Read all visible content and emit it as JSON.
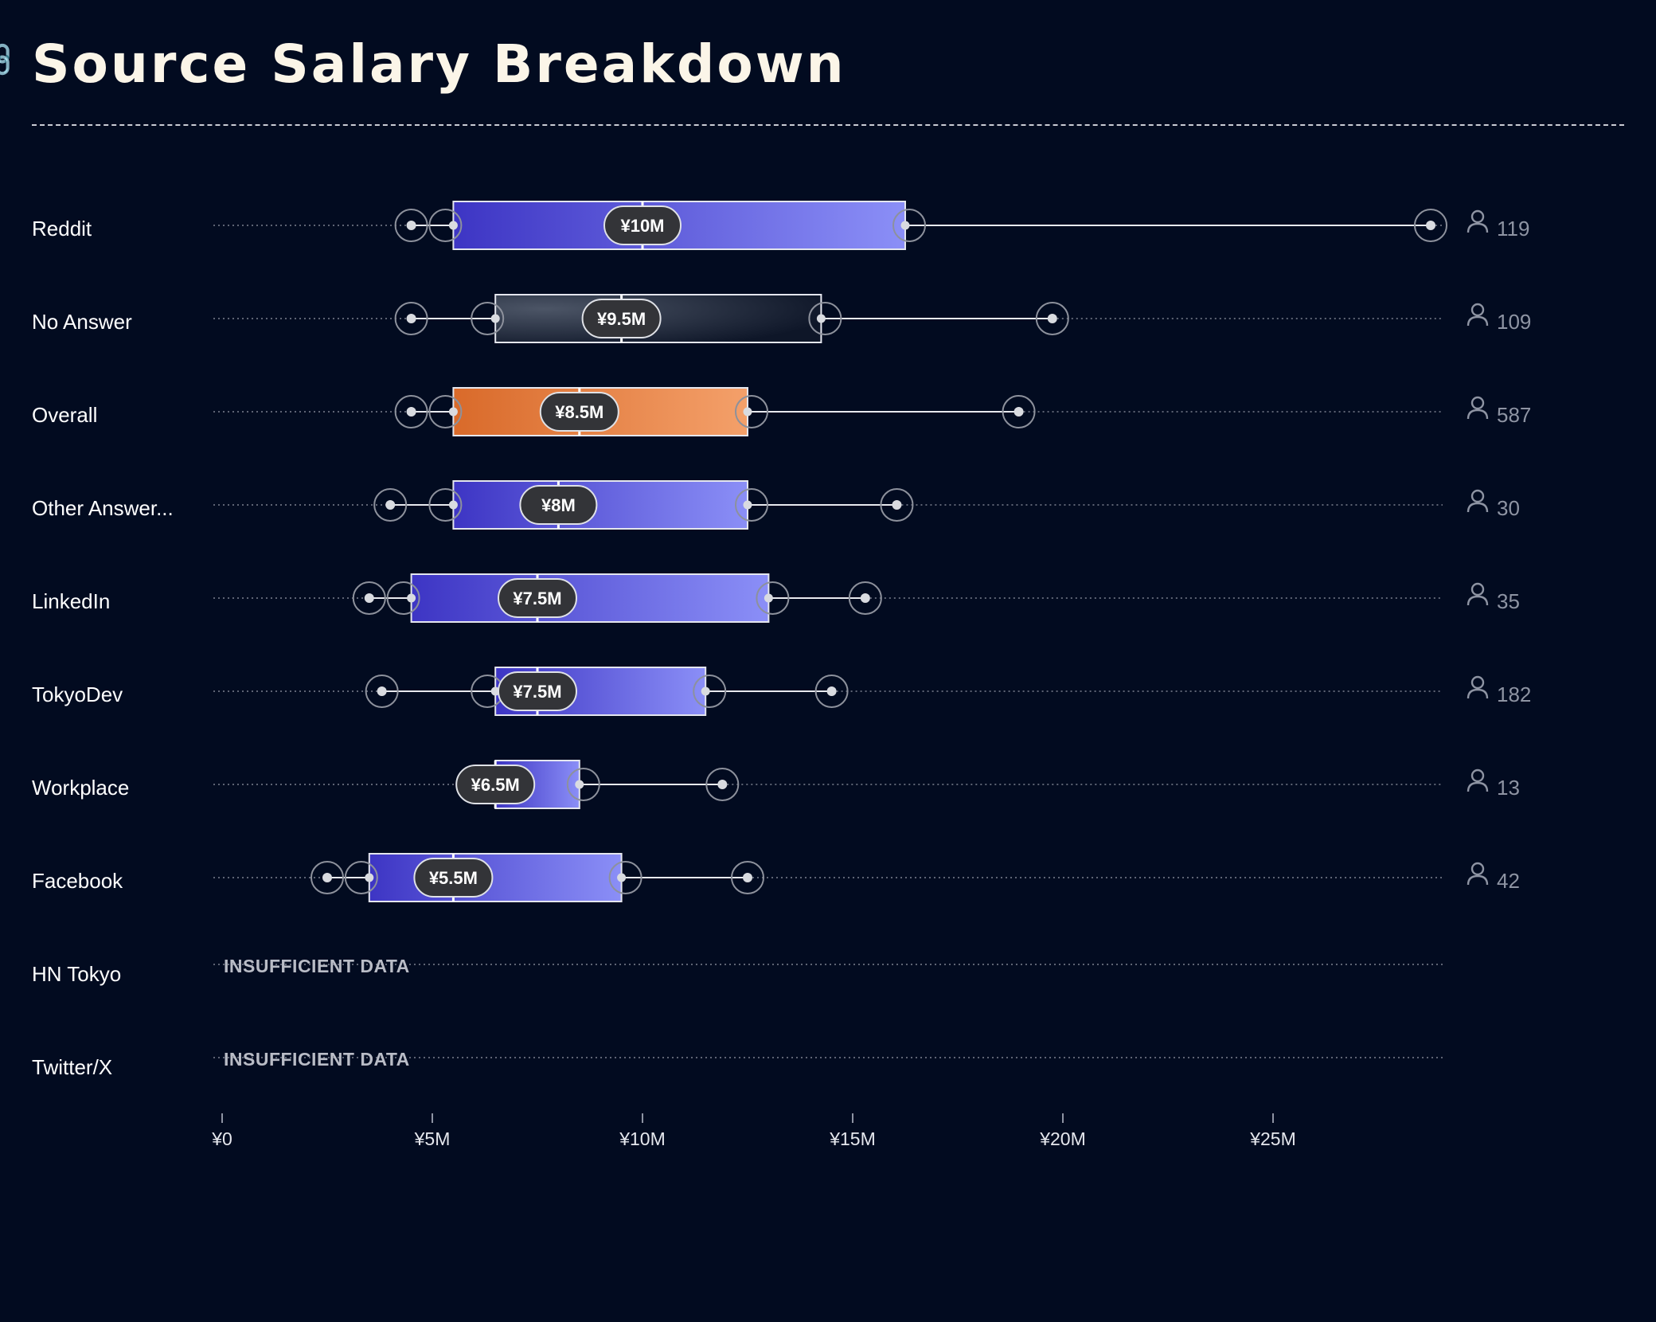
{
  "header": {
    "title": "Source Salary Breakdown",
    "link_icon": "link-icon"
  },
  "colors": {
    "background": "#020b20",
    "blue_from": "#3d35c4",
    "blue_to": "#8b8ff7",
    "orange_from": "#d96a2a",
    "orange_to": "#f4a06a",
    "gray_from": "#4c5566",
    "gray_to": "#0e1628",
    "pill": "#333438",
    "axis_text": "#e6e8ee",
    "count_text": "#8e94a3"
  },
  "chart_data": {
    "type": "box",
    "title": "Source Salary Breakdown",
    "xlim": [
      0,
      29000000
    ],
    "x_ticks": [
      {
        "value": 0,
        "label": "¥0"
      },
      {
        "value": 5000000,
        "label": "¥5M"
      },
      {
        "value": 10000000,
        "label": "¥10M"
      },
      {
        "value": 15000000,
        "label": "¥15M"
      },
      {
        "value": 20000000,
        "label": "¥20M"
      },
      {
        "value": 25000000,
        "label": "¥25M"
      }
    ],
    "count_icon": "user-icon",
    "insufficient_label": "INSUFFICIENT DATA",
    "rows": [
      {
        "label": "Reddit",
        "count": "119",
        "min": 4500000,
        "q1": 5500000,
        "median": 10000000,
        "q3": 16250000,
        "max": 28750000,
        "median_label": "¥10M",
        "style": "blue"
      },
      {
        "label": "No Answer",
        "count": "109",
        "min": 4500000,
        "q1": 6500000,
        "median": 9500000,
        "q3": 14250000,
        "max": 19750000,
        "median_label": "¥9.5M",
        "style": "gray"
      },
      {
        "label": "Overall",
        "count": "587",
        "min": 4500000,
        "q1": 5500000,
        "median": 8500000,
        "q3": 12500000,
        "max": 18950000,
        "median_label": "¥8.5M",
        "style": "orange"
      },
      {
        "label": "Other Answer...",
        "count": "30",
        "min": 4000000,
        "q1": 5500000,
        "median": 8000000,
        "q3": 12500000,
        "max": 16050000,
        "median_label": "¥8M",
        "style": "blue"
      },
      {
        "label": "LinkedIn",
        "count": "35",
        "min": 3500000,
        "q1": 4500000,
        "median": 7500000,
        "q3": 13000000,
        "max": 15300000,
        "median_label": "¥7.5M",
        "style": "blue"
      },
      {
        "label": "TokyoDev",
        "count": "182",
        "min": 3800000,
        "q1": 6500000,
        "median": 7500000,
        "q3": 11500000,
        "max": 14500000,
        "median_label": "¥7.5M",
        "style": "blue"
      },
      {
        "label": "Workplace",
        "count": "13",
        "min": null,
        "q1": 6500000,
        "median": 6500000,
        "q3": 8500000,
        "max": 11900000,
        "median_label": "¥6.5M",
        "style": "blue"
      },
      {
        "label": "Facebook",
        "count": "42",
        "min": 2500000,
        "q1": 3500000,
        "median": 5500000,
        "q3": 9500000,
        "max": 12500000,
        "median_label": "¥5.5M",
        "style": "blue"
      },
      {
        "label": "HN Tokyo",
        "count": "",
        "insufficient": true
      },
      {
        "label": "Twitter/X",
        "count": "",
        "insufficient": true
      }
    ]
  }
}
